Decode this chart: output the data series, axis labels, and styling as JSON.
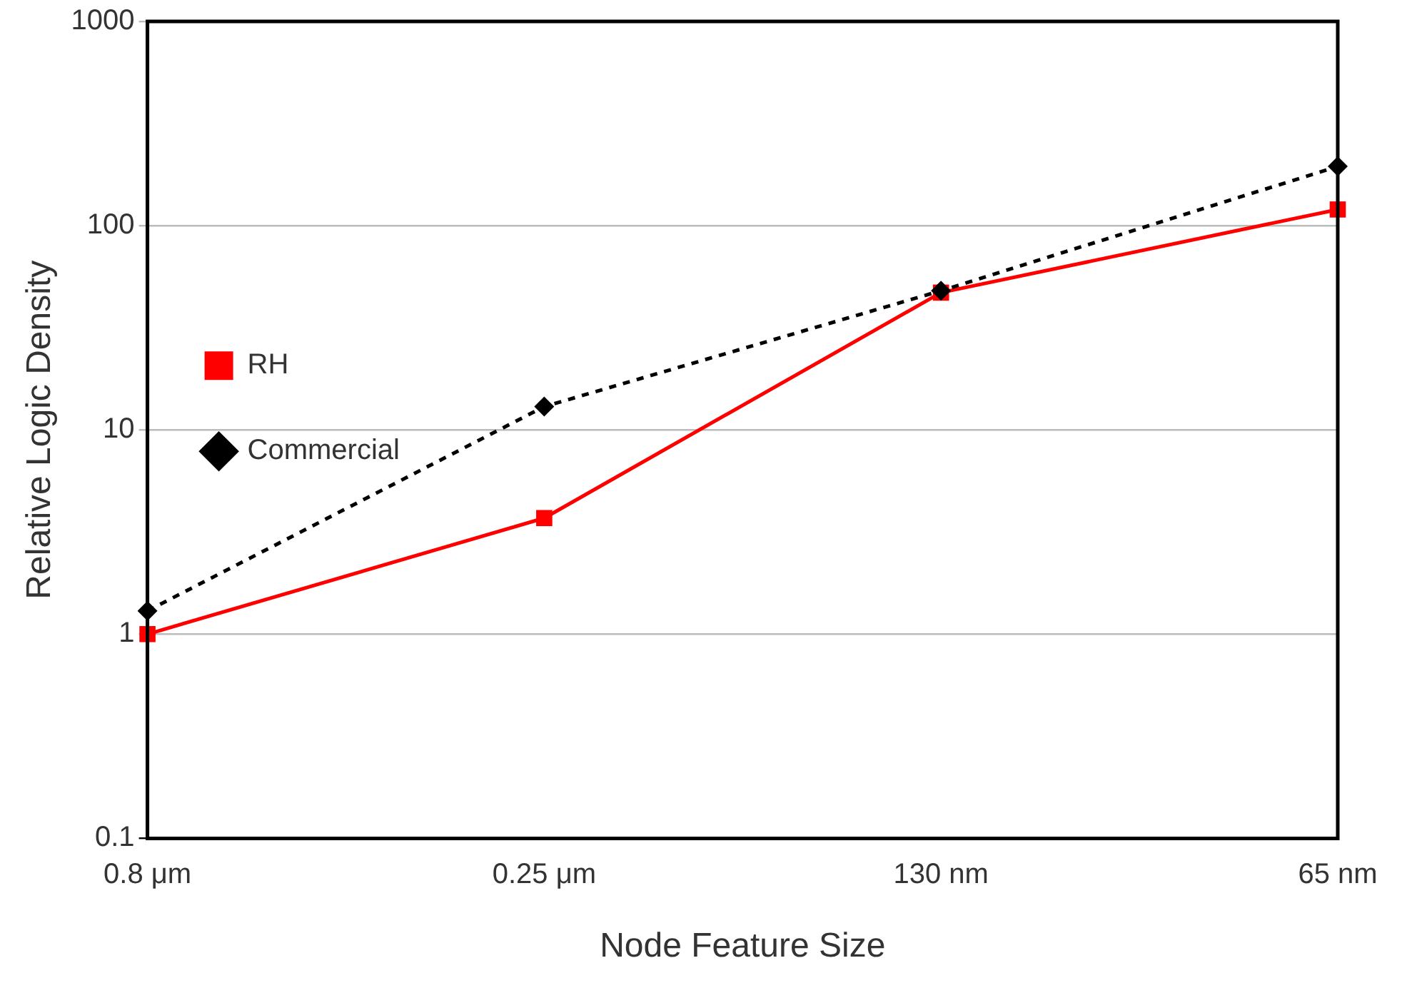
{
  "chart_data": {
    "type": "line",
    "xlabel": "Node Feature Size",
    "ylabel": "Relative Logic Density",
    "categories": [
      "0.8 μm",
      "0.25 μm",
      "130 nm",
      "65 nm"
    ],
    "series": [
      {
        "name": "RH",
        "color": "#ff0000",
        "values": [
          1,
          3.7,
          47,
          120
        ],
        "marker": "square",
        "line_style": "solid"
      },
      {
        "name": "Commercial",
        "color": "#000000",
        "values": [
          1.3,
          13,
          48,
          195
        ],
        "marker": "diamond",
        "line_style": "dotted"
      }
    ],
    "log": "y",
    "ylim": [
      0.1,
      1000
    ],
    "yticks": [
      0.1,
      1,
      10,
      100,
      1000
    ],
    "grid": "y",
    "legend": "top"
  }
}
